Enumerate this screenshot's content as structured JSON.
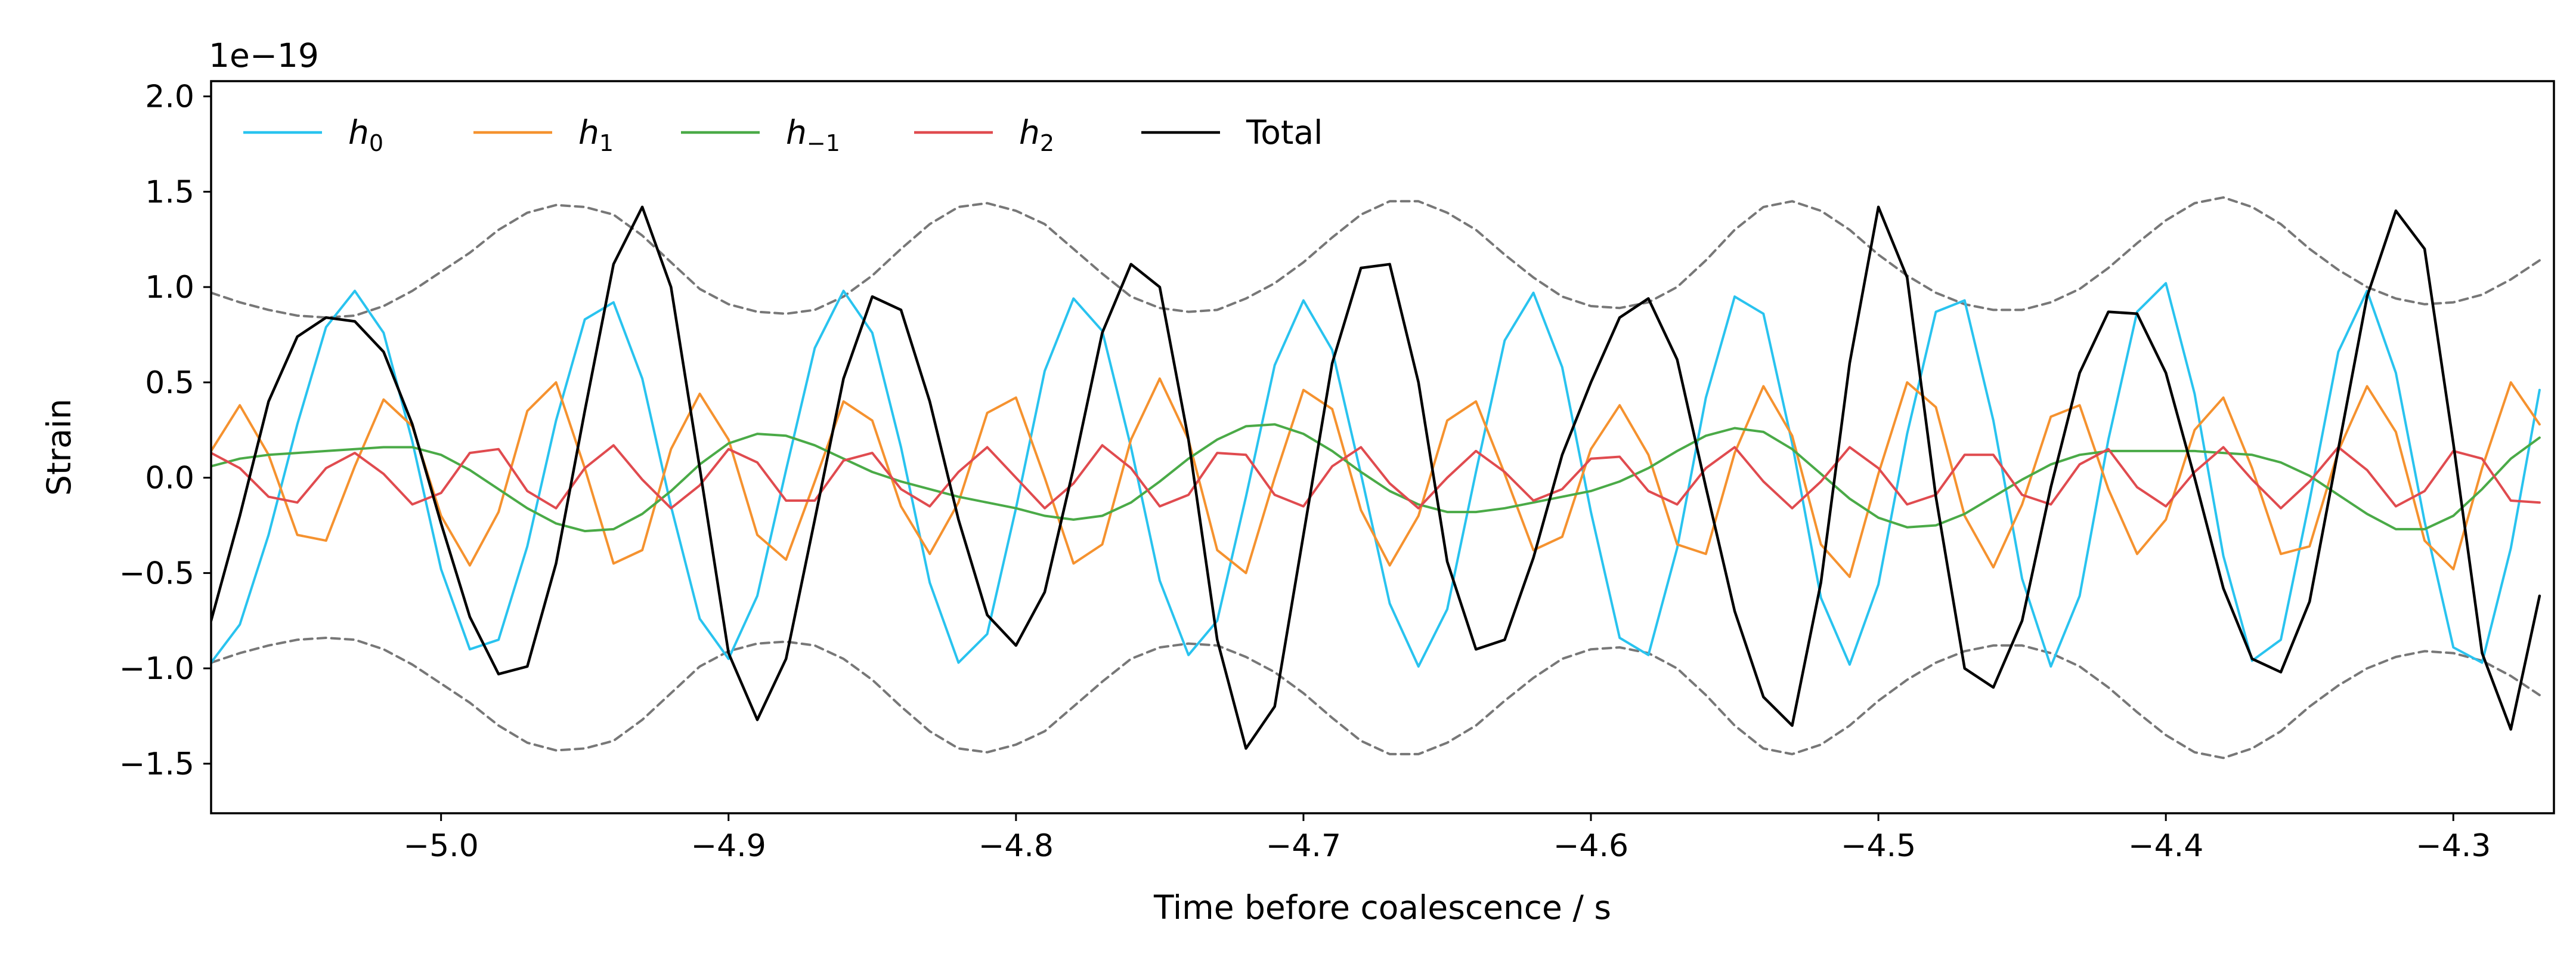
{
  "chart_data": {
    "type": "line",
    "title": "",
    "xlabel": "Time before coalescence / s",
    "ylabel": "Strain",
    "y_offset_label": "1e−19",
    "xlim": [
      -5.08,
      -4.265
    ],
    "ylim": [
      -1.76,
      2.08
    ],
    "x_ticks": [
      -5.0,
      -4.9,
      -4.8,
      -4.7,
      -4.6,
      -4.5,
      -4.4,
      -4.3
    ],
    "x_tick_labels": [
      "−5.0",
      "−4.9",
      "−4.8",
      "−4.7",
      "−4.6",
      "−4.5",
      "−4.4",
      "−4.3"
    ],
    "y_ticks": [
      -1.5,
      -1.0,
      -0.5,
      0.0,
      0.5,
      1.0,
      1.5,
      2.0
    ],
    "y_tick_labels": [
      "−1.5",
      "−1.0",
      "−0.5",
      "0.0",
      "0.5",
      "1.0",
      "1.5",
      "2.0"
    ],
    "grid": false,
    "legend_position": "top-left",
    "x": [
      -5.08,
      -5.07,
      -5.06,
      -5.05,
      -5.04,
      -5.03,
      -5.02,
      -5.01,
      -5.0,
      -4.99,
      -4.98,
      -4.97,
      -4.96,
      -4.95,
      -4.94,
      -4.93,
      -4.92,
      -4.91,
      -4.9,
      -4.89,
      -4.88,
      -4.87,
      -4.86,
      -4.85,
      -4.84,
      -4.83,
      -4.82,
      -4.81,
      -4.8,
      -4.79,
      -4.78,
      -4.77,
      -4.76,
      -4.75,
      -4.74,
      -4.73,
      -4.72,
      -4.71,
      -4.7,
      -4.69,
      -4.68,
      -4.67,
      -4.66,
      -4.65,
      -4.64,
      -4.63,
      -4.62,
      -4.61,
      -4.6,
      -4.59,
      -4.58,
      -4.57,
      -4.56,
      -4.55,
      -4.54,
      -4.53,
      -4.52,
      -4.51,
      -4.5,
      -4.49,
      -4.48,
      -4.47,
      -4.46,
      -4.45,
      -4.44,
      -4.43,
      -4.42,
      -4.41,
      -4.4,
      -4.39,
      -4.38,
      -4.37,
      -4.36,
      -4.35,
      -4.34,
      -4.33,
      -4.32,
      -4.31,
      -4.3,
      -4.29,
      -4.28,
      -4.27
    ],
    "series": [
      {
        "name": "h0",
        "label_base": "h",
        "label_sub": "0",
        "color": "#29c3ef",
        "dashed": false,
        "values": [
          -0.97,
          -0.77,
          -0.3,
          0.28,
          0.79,
          0.98,
          0.76,
          0.19,
          -0.48,
          -0.9,
          -0.85,
          -0.36,
          0.3,
          0.83,
          0.92,
          0.52,
          -0.15,
          -0.74,
          -0.95,
          -0.62,
          0.04,
          0.68,
          0.98,
          0.76,
          0.16,
          -0.55,
          -0.97,
          -0.82,
          -0.16,
          0.56,
          0.94,
          0.77,
          0.16,
          -0.54,
          -0.93,
          -0.75,
          -0.1,
          0.59,
          0.93,
          0.67,
          0.02,
          -0.66,
          -0.99,
          -0.69,
          0.03,
          0.72,
          0.97,
          0.58,
          -0.18,
          -0.84,
          -0.93,
          -0.37,
          0.42,
          0.95,
          0.86,
          0.18,
          -0.63,
          -0.98,
          -0.56,
          0.23,
          0.87,
          0.93,
          0.3,
          -0.53,
          -0.99,
          -0.62,
          0.2,
          0.87,
          1.02,
          0.44,
          -0.41,
          -0.96,
          -0.85,
          -0.12,
          0.66,
          0.98,
          0.55,
          -0.23,
          -0.89,
          -0.97,
          -0.37,
          0.46
        ]
      },
      {
        "name": "h1",
        "label_base": "h",
        "label_sub": "1",
        "color": "#f5922f",
        "dashed": false,
        "values": [
          0.14,
          0.38,
          0.12,
          -0.3,
          -0.33,
          0.06,
          0.41,
          0.27,
          -0.2,
          -0.46,
          -0.18,
          0.35,
          0.5,
          0.05,
          -0.45,
          -0.38,
          0.15,
          0.44,
          0.2,
          -0.3,
          -0.43,
          -0.02,
          0.4,
          0.3,
          -0.15,
          -0.4,
          -0.13,
          0.34,
          0.42,
          0.0,
          -0.45,
          -0.35,
          0.2,
          0.52,
          0.2,
          -0.38,
          -0.5,
          0.0,
          0.46,
          0.36,
          -0.17,
          -0.46,
          -0.2,
          0.3,
          0.4,
          0.02,
          -0.38,
          -0.31,
          0.15,
          0.38,
          0.12,
          -0.35,
          -0.4,
          0.13,
          0.48,
          0.22,
          -0.35,
          -0.52,
          0.02,
          0.5,
          0.37,
          -0.2,
          -0.47,
          -0.14,
          0.32,
          0.38,
          -0.06,
          -0.4,
          -0.22,
          0.25,
          0.42,
          0.05,
          -0.4,
          -0.36,
          0.14,
          0.48,
          0.24,
          -0.33,
          -0.48,
          0.05,
          0.5,
          0.28
        ]
      },
      {
        "name": "h-1",
        "label_base": "h",
        "label_sub": "−1",
        "color": "#4aaa47",
        "dashed": false,
        "values": [
          0.06,
          0.1,
          0.12,
          0.13,
          0.14,
          0.15,
          0.16,
          0.16,
          0.12,
          0.04,
          -0.06,
          -0.16,
          -0.24,
          -0.28,
          -0.27,
          -0.19,
          -0.07,
          0.07,
          0.18,
          0.23,
          0.22,
          0.17,
          0.1,
          0.03,
          -0.02,
          -0.06,
          -0.1,
          -0.13,
          -0.16,
          -0.2,
          -0.22,
          -0.2,
          -0.13,
          -0.02,
          0.1,
          0.2,
          0.27,
          0.28,
          0.23,
          0.14,
          0.03,
          -0.07,
          -0.14,
          -0.18,
          -0.18,
          -0.16,
          -0.13,
          -0.1,
          -0.07,
          -0.02,
          0.05,
          0.14,
          0.22,
          0.26,
          0.24,
          0.15,
          0.02,
          -0.11,
          -0.21,
          -0.26,
          -0.25,
          -0.19,
          -0.1,
          -0.01,
          0.07,
          0.12,
          0.14,
          0.14,
          0.14,
          0.14,
          0.13,
          0.12,
          0.08,
          0.01,
          -0.09,
          -0.19,
          -0.27,
          -0.27,
          -0.2,
          -0.06,
          0.1,
          0.21
        ]
      },
      {
        "name": "h2",
        "label_base": "h",
        "label_sub": "2",
        "color": "#e04b4f",
        "dashed": false,
        "values": [
          0.13,
          0.05,
          -0.1,
          -0.13,
          0.05,
          0.13,
          0.02,
          -0.14,
          -0.08,
          0.13,
          0.15,
          -0.07,
          -0.16,
          0.05,
          0.17,
          -0.01,
          -0.16,
          -0.04,
          0.15,
          0.08,
          -0.12,
          -0.12,
          0.09,
          0.13,
          -0.06,
          -0.15,
          0.03,
          0.16,
          0.0,
          -0.16,
          -0.03,
          0.17,
          0.05,
          -0.15,
          -0.09,
          0.13,
          0.12,
          -0.09,
          -0.15,
          0.06,
          0.16,
          -0.03,
          -0.16,
          0.0,
          0.14,
          0.03,
          -0.12,
          -0.06,
          0.1,
          0.11,
          -0.07,
          -0.14,
          0.05,
          0.16,
          -0.02,
          -0.16,
          -0.02,
          0.16,
          0.05,
          -0.14,
          -0.09,
          0.12,
          0.12,
          -0.09,
          -0.14,
          0.07,
          0.15,
          -0.05,
          -0.15,
          0.03,
          0.16,
          -0.01,
          -0.16,
          -0.02,
          0.16,
          0.04,
          -0.15,
          -0.07,
          0.14,
          0.1,
          -0.12,
          -0.13
        ]
      },
      {
        "name": "Total",
        "label_base": "Total",
        "label_sub": "",
        "color": "#000000",
        "dashed": false,
        "values": [
          -0.75,
          -0.2,
          0.4,
          0.74,
          0.84,
          0.82,
          0.66,
          0.28,
          -0.24,
          -0.73,
          -1.03,
          -0.99,
          -0.45,
          0.35,
          1.12,
          1.42,
          1.0,
          0.05,
          -0.92,
          -1.27,
          -0.95,
          -0.22,
          0.52,
          0.95,
          0.88,
          0.4,
          -0.22,
          -0.72,
          -0.88,
          -0.6,
          0.05,
          0.76,
          1.12,
          1.0,
          0.2,
          -0.85,
          -1.42,
          -1.2,
          -0.3,
          0.6,
          1.1,
          1.12,
          0.5,
          -0.44,
          -0.9,
          -0.85,
          -0.42,
          0.12,
          0.5,
          0.84,
          0.94,
          0.62,
          -0.05,
          -0.7,
          -1.15,
          -1.3,
          -0.55,
          0.6,
          1.42,
          1.05,
          -0.1,
          -1.0,
          -1.1,
          -0.75,
          -0.05,
          0.55,
          0.87,
          0.86,
          0.55,
          0.0,
          -0.58,
          -0.95,
          -1.02,
          -0.65,
          0.15,
          0.95,
          1.4,
          1.2,
          0.18,
          -0.92,
          -1.32,
          -0.62
        ]
      },
      {
        "name": "upper envelope",
        "color": "#777777",
        "dashed": true,
        "values": [
          0.97,
          0.92,
          0.88,
          0.85,
          0.84,
          0.85,
          0.9,
          0.98,
          1.08,
          1.18,
          1.3,
          1.39,
          1.43,
          1.42,
          1.38,
          1.27,
          1.13,
          0.99,
          0.91,
          0.87,
          0.86,
          0.88,
          0.95,
          1.06,
          1.2,
          1.33,
          1.42,
          1.44,
          1.4,
          1.33,
          1.2,
          1.07,
          0.95,
          0.89,
          0.87,
          0.88,
          0.94,
          1.02,
          1.13,
          1.26,
          1.38,
          1.45,
          1.45,
          1.39,
          1.3,
          1.17,
          1.05,
          0.95,
          0.9,
          0.89,
          0.92,
          1.0,
          1.14,
          1.3,
          1.42,
          1.45,
          1.4,
          1.3,
          1.17,
          1.06,
          0.97,
          0.91,
          0.88,
          0.88,
          0.92,
          0.99,
          1.1,
          1.23,
          1.35,
          1.44,
          1.47,
          1.42,
          1.33,
          1.2,
          1.09,
          1.0,
          0.94,
          0.91,
          0.92,
          0.96,
          1.04,
          1.14
        ]
      },
      {
        "name": "lower envelope",
        "color": "#777777",
        "dashed": true,
        "values": [
          -0.97,
          -0.92,
          -0.88,
          -0.85,
          -0.84,
          -0.85,
          -0.9,
          -0.98,
          -1.08,
          -1.18,
          -1.3,
          -1.39,
          -1.43,
          -1.42,
          -1.38,
          -1.27,
          -1.13,
          -0.99,
          -0.91,
          -0.87,
          -0.86,
          -0.88,
          -0.95,
          -1.06,
          -1.2,
          -1.33,
          -1.42,
          -1.44,
          -1.4,
          -1.33,
          -1.2,
          -1.07,
          -0.95,
          -0.89,
          -0.87,
          -0.88,
          -0.94,
          -1.02,
          -1.13,
          -1.26,
          -1.38,
          -1.45,
          -1.45,
          -1.39,
          -1.3,
          -1.17,
          -1.05,
          -0.95,
          -0.9,
          -0.89,
          -0.92,
          -1.0,
          -1.14,
          -1.3,
          -1.42,
          -1.45,
          -1.4,
          -1.3,
          -1.17,
          -1.06,
          -0.97,
          -0.91,
          -0.88,
          -0.88,
          -0.92,
          -0.99,
          -1.1,
          -1.23,
          -1.35,
          -1.44,
          -1.47,
          -1.42,
          -1.33,
          -1.2,
          -1.09,
          -1.0,
          -0.94,
          -0.91,
          -0.92,
          -0.96,
          -1.04,
          -1.14
        ]
      }
    ]
  }
}
